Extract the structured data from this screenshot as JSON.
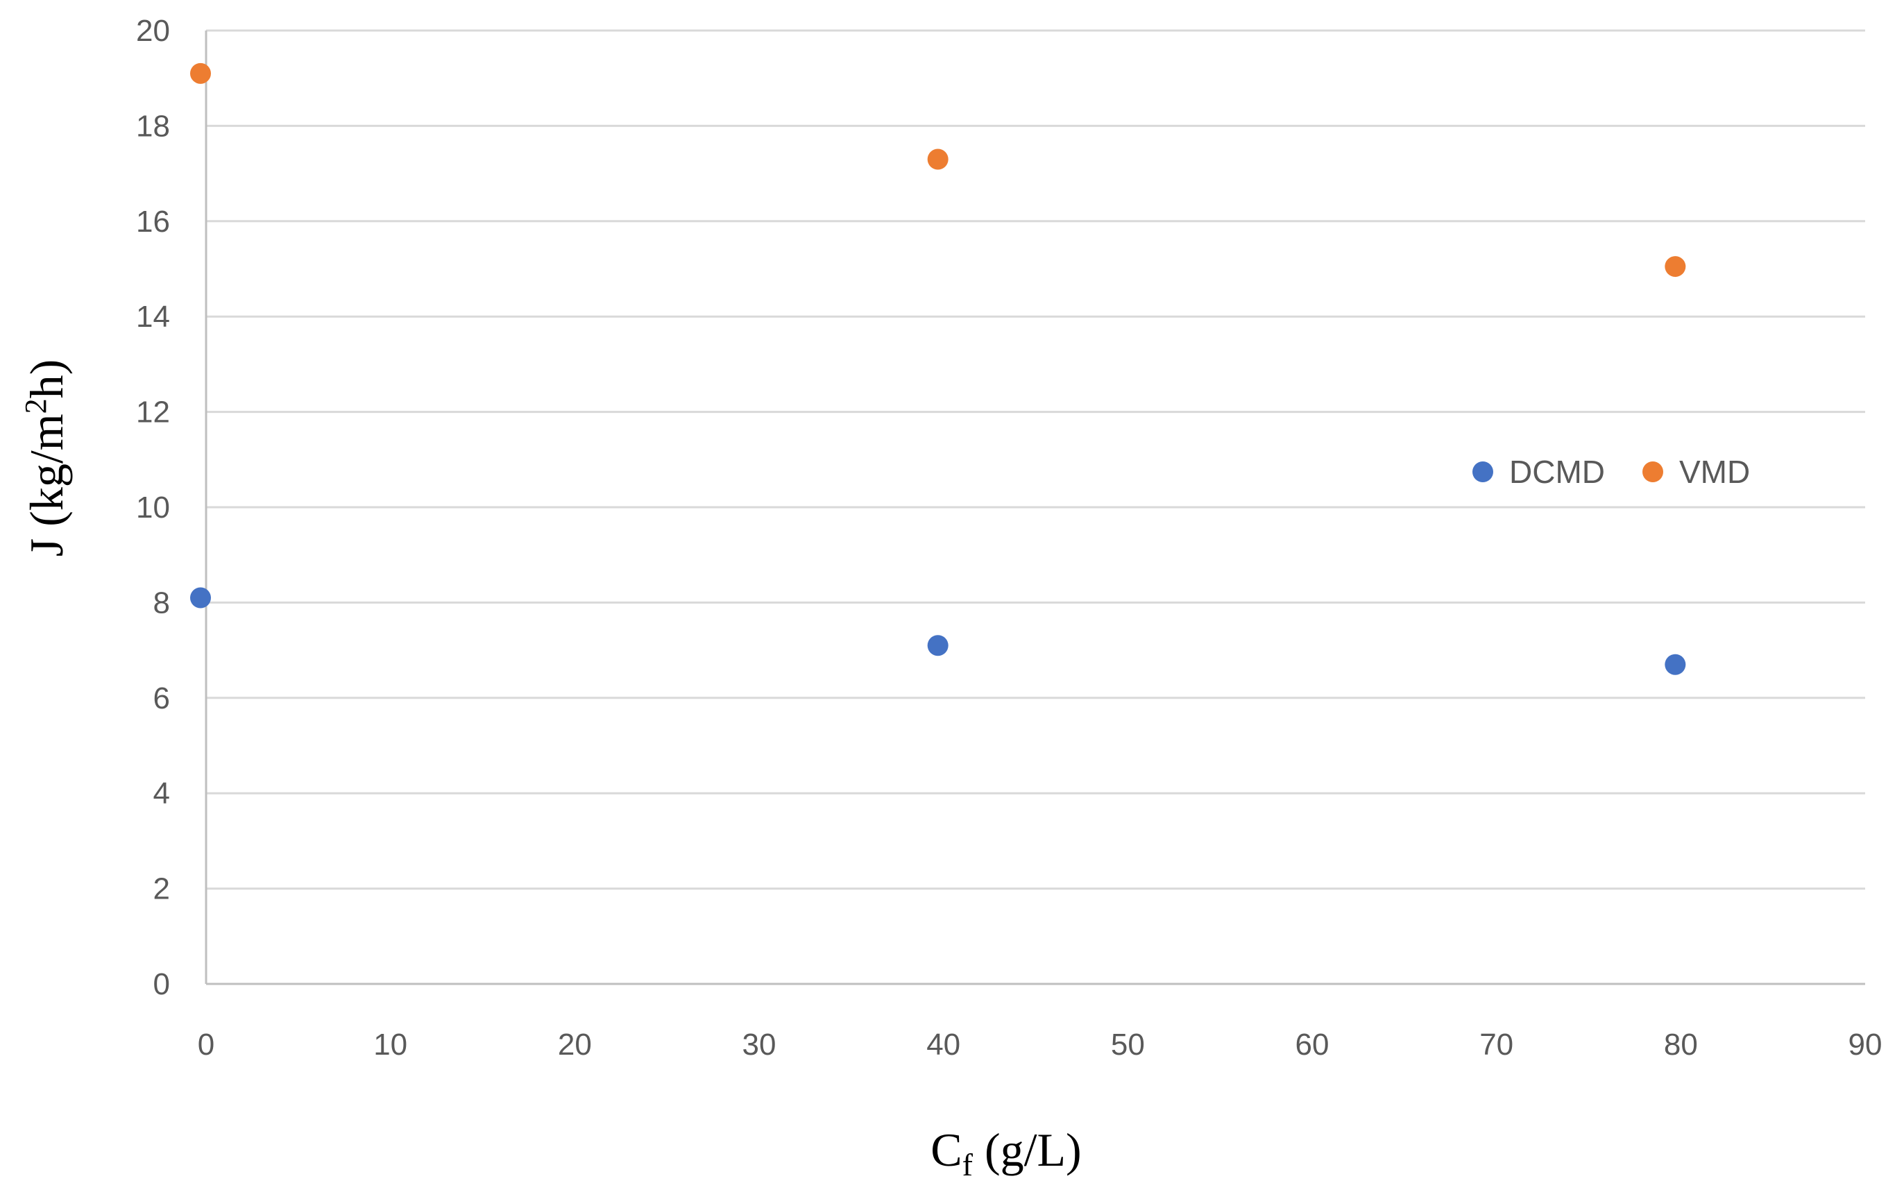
{
  "chart_data": {
    "type": "scatter",
    "title": "",
    "xlabel": {
      "main": "C",
      "subscript": "f",
      "suffix": " (g/L)"
    },
    "ylabel": {
      "prefix": "J (kg/m",
      "superscript": "2",
      "suffix": "h)"
    },
    "xlim": [
      0,
      90
    ],
    "ylim": [
      0,
      20
    ],
    "x_ticks": [
      "0",
      "10",
      "20",
      "30",
      "40",
      "50",
      "60",
      "70",
      "80",
      "90"
    ],
    "y_ticks": [
      "0",
      "2",
      "4",
      "6",
      "8",
      "10",
      "12",
      "14",
      "16",
      "18",
      "20"
    ],
    "grid": "horizontal",
    "legend_position": "right-middle",
    "series": [
      {
        "name": "DCMD",
        "color": "#4472C4",
        "points": [
          {
            "x": 0,
            "y": 8.1
          },
          {
            "x": 40,
            "y": 7.1
          },
          {
            "x": 80,
            "y": 6.7
          }
        ]
      },
      {
        "name": "VMD",
        "color": "#ED7D31",
        "points": [
          {
            "x": 0,
            "y": 19.1
          },
          {
            "x": 40,
            "y": 17.3
          },
          {
            "x": 80,
            "y": 15.05
          }
        ]
      }
    ]
  }
}
